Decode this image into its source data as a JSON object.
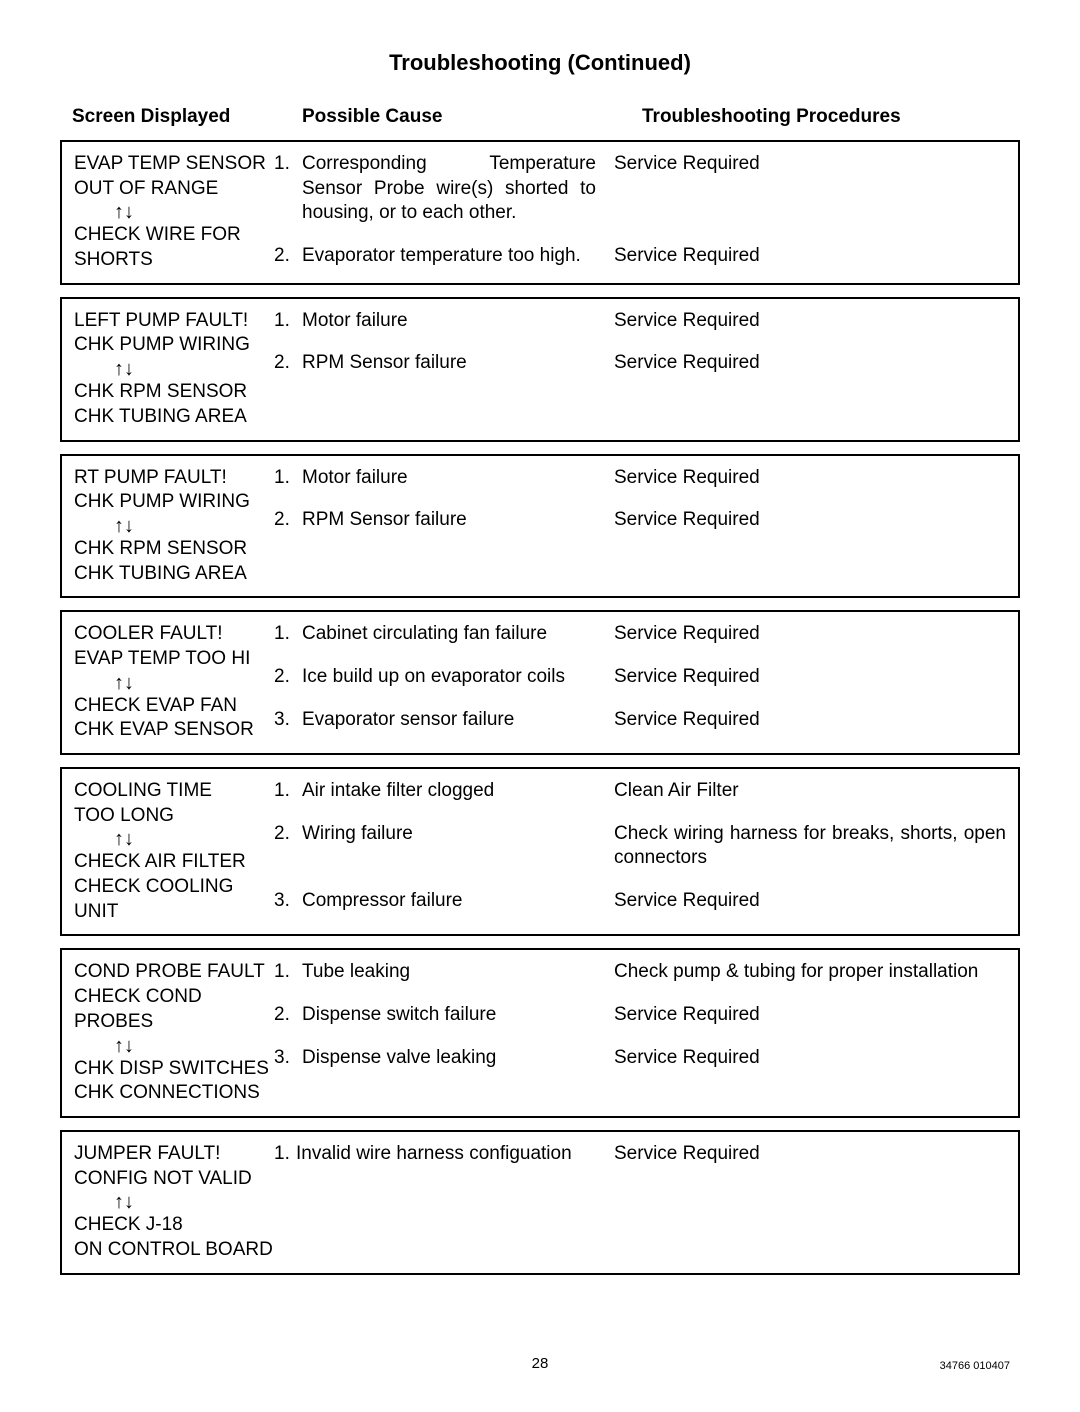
{
  "title": "Troubleshooting (Continued)",
  "headers": {
    "c1": "Screen Displayed",
    "c2": "Possible Cause",
    "c3": "Troubleshooting Procedures"
  },
  "arrows_glyph": "↑↓",
  "blocks": [
    {
      "screen": [
        "EVAP TEMP SENSOR",
        "OUT OF RANGE",
        "ARROWS",
        "CHECK WIRE FOR",
        "SHORTS"
      ],
      "rows": [
        {
          "num": "1.",
          "cause": "Corresponding Temperature Sensor Probe wire(s) shorted to housing, or to each other.",
          "proc": "Service Required"
        },
        {
          "num": "2.",
          "cause": "Evaporator temperature too high.",
          "proc": "Service Required"
        }
      ]
    },
    {
      "screen": [
        "LEFT PUMP FAULT!",
        "CHK PUMP WIRING",
        "ARROWS",
        "CHK RPM SENSOR",
        "CHK TUBING AREA"
      ],
      "rows": [
        {
          "num": "1.",
          "cause": "Motor failure",
          "proc": "Service Required"
        },
        {
          "num": "2.",
          "cause": "RPM Sensor failure",
          "proc": "Service Required"
        }
      ]
    },
    {
      "screen": [
        "RT PUMP FAULT!",
        "CHK PUMP WIRING",
        "ARROWS",
        "CHK RPM SENSOR",
        "CHK TUBING AREA"
      ],
      "rows": [
        {
          "num": "1.",
          "cause": "Motor failure",
          "proc": "Service Required"
        },
        {
          "num": "2.",
          "cause": "RPM Sensor failure",
          "proc": "Service Required"
        }
      ]
    },
    {
      "screen": [
        "COOLER FAULT!",
        "EVAP TEMP TOO HI",
        "ARROWS",
        "CHECK EVAP FAN",
        "CHK EVAP SENSOR"
      ],
      "rows": [
        {
          "num": "1.",
          "cause": "Cabinet circulating fan failure",
          "proc": "Service Required"
        },
        {
          "num": "2.",
          "cause": "Ice build up on evaporator coils",
          "proc": "Service Required"
        },
        {
          "num": "3.",
          "cause": "Evaporator sensor failure",
          "proc": "Service Required"
        }
      ]
    },
    {
      "screen": [
        "COOLING TIME",
        "TOO LONG",
        "ARROWS",
        "CHECK AIR FILTER",
        "CHECK COOLING UNIT"
      ],
      "rows": [
        {
          "num": "1.",
          "cause": "Air intake filter clogged",
          "proc": "Clean Air Filter"
        },
        {
          "num": "2.",
          "cause": "Wiring failure",
          "proc": "Check wiring harness for breaks, shorts, open connectors"
        },
        {
          "num": "3.",
          "cause": "Compressor failure",
          "proc": "Service Required"
        }
      ]
    },
    {
      "screen": [
        "COND PROBE FAULT",
        "CHECK COND PROBES",
        "ARROWS",
        "CHK DISP SWITCHES",
        "CHK CONNECTIONS"
      ],
      "rows": [
        {
          "num": "1.",
          "cause": "Tube leaking",
          "proc": "Check pump & tubing for proper installation"
        },
        {
          "num": "2.",
          "cause": "Dispense switch failure",
          "proc": "Service Required"
        },
        {
          "num": "3.",
          "cause": "Dispense valve leaking",
          "proc": "Service Required"
        }
      ]
    },
    {
      "screen": [
        "JUMPER FAULT!",
        "CONFIG NOT VALID",
        "ARROWS",
        "CHECK J-18",
        "ON CONTROL BOARD"
      ],
      "rows": [
        {
          "num": "1.",
          "cause": "Invalid wire harness configuation",
          "proc": "Service Required",
          "nospace": true
        }
      ]
    }
  ],
  "footer": {
    "page": "28",
    "doc": "34766 010407"
  }
}
